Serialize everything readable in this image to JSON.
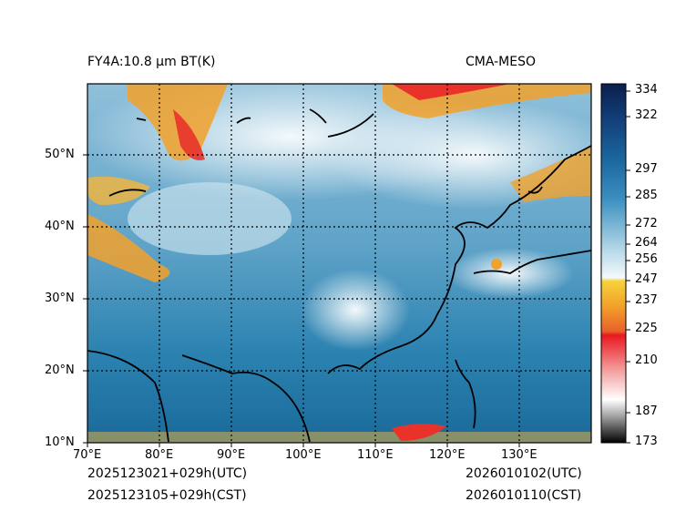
{
  "header": {
    "title_left": "FY4A:10.8 µm BT(K)",
    "title_right": "CMA-MESO"
  },
  "map": {
    "lat_labels": [
      "10°N",
      "20°N",
      "30°N",
      "40°N",
      "50°N"
    ],
    "lon_labels": [
      "70°E",
      "80°E",
      "90°E",
      "100°E",
      "110°E",
      "120°E",
      "130°E"
    ],
    "colors": {
      "frame": "#000000",
      "ocean_deep": "#1a6a9a",
      "ocean_mid": "#2b82b0",
      "land_light": "#a9cde0",
      "cloud_white": "#eef5f8",
      "cold_orange": "#f2a12a",
      "cold_red": "#e8322a",
      "gridline": "#000000"
    }
  },
  "colorbar": {
    "ticks": [
      "334",
      "322",
      "297",
      "285",
      "272",
      "264",
      "256",
      "247",
      "237",
      "225",
      "210",
      "187",
      "173"
    ]
  },
  "footer": {
    "left_utc": "2025123021+029h(UTC)",
    "left_cst": "2025123105+029h(CST)",
    "right_utc": "2026010102(UTC)",
    "right_cst": "2026010110(CST)"
  }
}
